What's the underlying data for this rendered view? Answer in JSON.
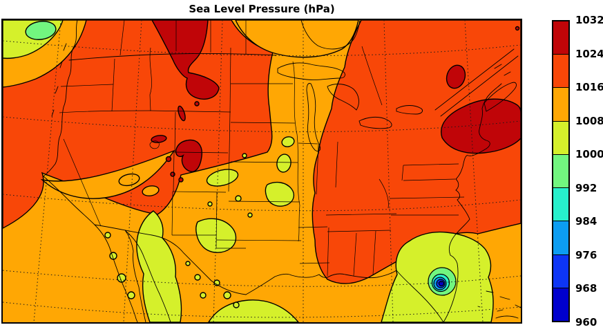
{
  "title": "Sea Level Pressure (hPa)",
  "colorbar": {
    "tick_labels": [
      "1032",
      "1024",
      "1016",
      "1008",
      "1000",
      "992",
      "984",
      "976",
      "968",
      "960"
    ],
    "segment_colors_top_to_bottom": [
      "#C00508",
      "#F84708",
      "#FFA704",
      "#D5F02B",
      "#72F67F",
      "#27F0CC",
      "#0C9DF2",
      "#0D35F5",
      "#0000CD"
    ]
  },
  "chart_data": {
    "type": "heatmap",
    "title": "Sea Level Pressure (hPa)",
    "variable": "sea level pressure",
    "units": "hPa",
    "contour_levels": [
      960,
      968,
      976,
      984,
      992,
      1000,
      1008,
      1016,
      1024,
      1032
    ],
    "colormap": "discrete jet, 9 filled contour bands with black contour lines",
    "colorbar_position": "right",
    "band_colors": {
      "960-968": "#0000CD",
      "968-976": "#0D35F5",
      "976-984": "#0C9DF2",
      "984-992": "#27F0CC",
      "992-1000": "#72F67F",
      "1000-1008": "#D5F02B",
      "1008-1016": "#FFA704",
      "1016-1024": "#F84708",
      "1024-1032": "#C00508"
    },
    "features": [
      {
        "name": "intense closed low (tropical cyclone) over Florida",
        "central_band": "960-968",
        "rings": [
          "1000-1008",
          "992-1000",
          "984-992",
          "976-984",
          "968-976",
          "960-968"
        ]
      },
      {
        "name": "strong high over New England and northwest Atlantic",
        "band": "1024-1032"
      },
      {
        "name": "high over Saskatchewan / northern plains",
        "band": "1024-1032"
      },
      {
        "name": "high over Colorado Rockies",
        "band": "1024-1032"
      },
      {
        "name": "weak low off Pacific Northwest coast (map corner)",
        "band": "992-1000"
      },
      {
        "name": "broad lower pressure over southwest US and Mexico",
        "band": "1000-1016"
      }
    ],
    "map_overlay": "North America coastlines (US, Canada, Mexico), state/province borders, Great Lakes, dotted latitude-longitude graticule"
  }
}
